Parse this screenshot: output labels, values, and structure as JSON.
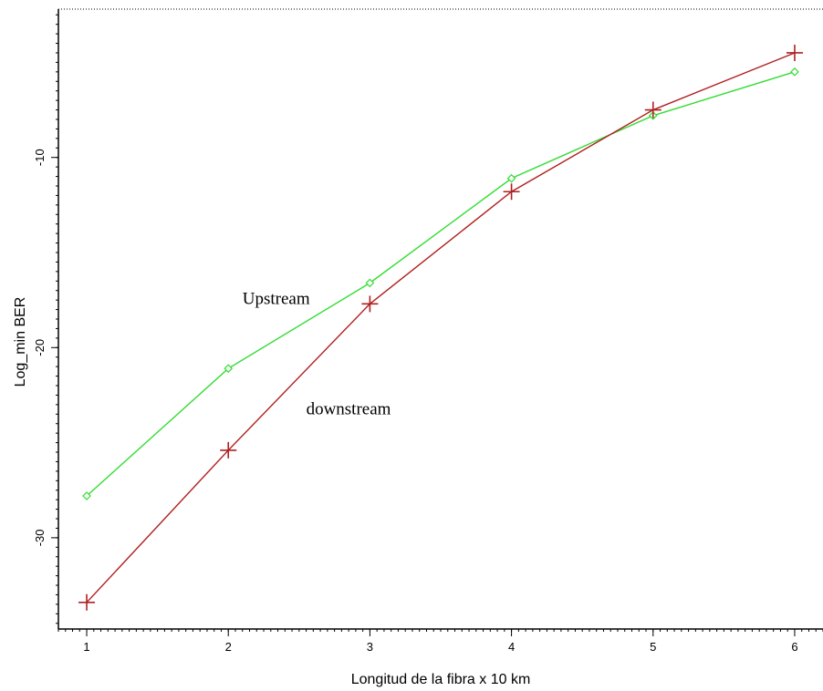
{
  "chart_data": {
    "type": "line",
    "title": "",
    "xlabel": "Longitud de la fibra x 10 km",
    "ylabel": "Log_min BER",
    "x": [
      1,
      2,
      3,
      4,
      5,
      6
    ],
    "xlim": [
      0.8,
      6.2
    ],
    "ylim": [
      -34.8,
      -2.2
    ],
    "x_ticks": [
      "1",
      "2",
      "3",
      "4",
      "5",
      "6"
    ],
    "y_ticks": [
      {
        "value": -10,
        "label": "-10"
      },
      {
        "value": -20,
        "label": "-20"
      },
      {
        "value": -30,
        "label": "-30"
      }
    ],
    "grid": false,
    "series": [
      {
        "name": "Upstream",
        "color": "#33dd33",
        "marker": "diamond",
        "values": [
          -27.8,
          -21.1,
          -16.6,
          -11.1,
          -7.8,
          -5.5
        ]
      },
      {
        "name": "downstream",
        "color": "#b02020",
        "marker": "plus",
        "values": [
          -33.4,
          -25.4,
          -17.7,
          -11.8,
          -7.5,
          -4.5
        ]
      }
    ],
    "annotations": [
      {
        "text": "Upstream",
        "x": 2.1,
        "y": -17.7
      },
      {
        "text": "downstream",
        "x": 2.55,
        "y": -23.5
      }
    ]
  }
}
